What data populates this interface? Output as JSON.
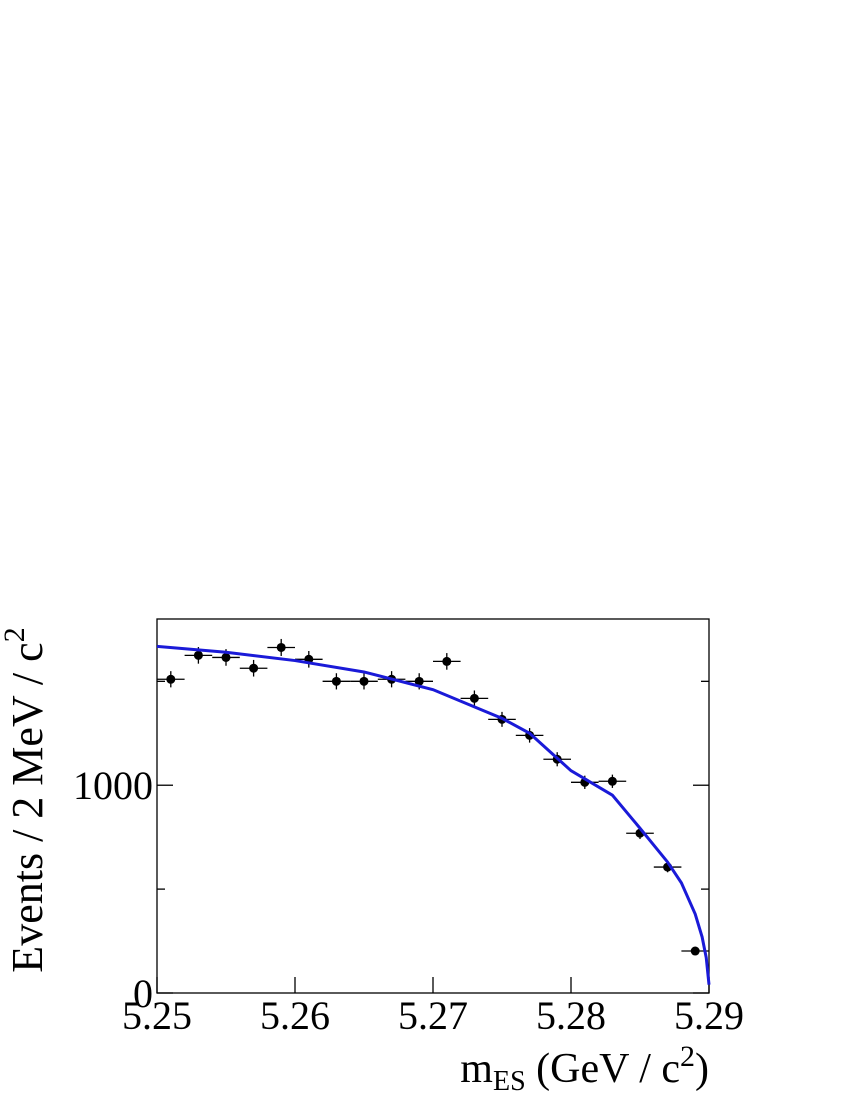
{
  "chart_data": {
    "type": "scatter",
    "xlim": [
      5.25,
      5.29
    ],
    "xticks": [
      {
        "value": 5.25,
        "label": "5.25"
      },
      {
        "value": 5.26,
        "label": "5.26"
      },
      {
        "value": 5.27,
        "label": "5.27"
      },
      {
        "value": 5.28,
        "label": "5.28"
      },
      {
        "value": 5.29,
        "label": "5.29"
      }
    ],
    "ylim": [
      0,
      1800
    ],
    "yticks": [
      0,
      1000
    ],
    "yminorticks": [
      500,
      1500
    ],
    "y_label": "Events / 2 MeV / c",
    "y_label_sup": "2",
    "x_label_main": "m",
    "x_label_sub": "ES",
    "x_label_rest": " (GeV / c",
    "x_label_sup": "2",
    "x_label_close": ")",
    "bin_width": 0.002,
    "series": [
      {
        "name": "data",
        "color": "#000000",
        "x": [
          5.251,
          5.253,
          5.255,
          5.257,
          5.259,
          5.261,
          5.263,
          5.265,
          5.267,
          5.269,
          5.271,
          5.273,
          5.275,
          5.277,
          5.279,
          5.281,
          5.283,
          5.285,
          5.287,
          5.289
        ],
        "values": [
          1510,
          1625,
          1615,
          1563,
          1663,
          1606,
          1500,
          1500,
          1510,
          1500,
          1596,
          1418,
          1317,
          1240,
          1125,
          1014,
          1019,
          769,
          606,
          202
        ],
        "errors": [
          39,
          40,
          40,
          40,
          41,
          40,
          39,
          39,
          39,
          39,
          40,
          38,
          36,
          35,
          34,
          32,
          32,
          28,
          25,
          14
        ]
      },
      {
        "name": "fit",
        "color": "#1a1ad8",
        "x": [
          5.25,
          5.255,
          5.26,
          5.265,
          5.27,
          5.275,
          5.277,
          5.28,
          5.283,
          5.285,
          5.287,
          5.288,
          5.289,
          5.2895,
          5.2898,
          5.29
        ],
        "values": [
          1668,
          1640,
          1600,
          1545,
          1460,
          1322,
          1250,
          1070,
          952,
          793,
          630,
          530,
          380,
          270,
          170,
          40
        ]
      }
    ]
  }
}
